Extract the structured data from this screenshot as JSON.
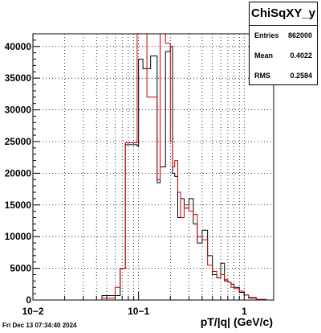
{
  "stats": {
    "title": "ChiSqXY_y",
    "rows": [
      {
        "label": "Entries",
        "value": "862000"
      },
      {
        "label": "Mean",
        "value": "0.4022"
      },
      {
        "label": "RMS",
        "value": "0.2584"
      }
    ]
  },
  "timestamp": "Fri Dec 13 07:34:40 2024",
  "chart_data": {
    "type": "line",
    "xlabel": "pT/|q| (GeV/c)",
    "ylabel": "",
    "x_scale": "log",
    "xlim": [
      0.01,
      1.9
    ],
    "ylim": [
      0,
      42000
    ],
    "grid": true,
    "x_ticks": [
      {
        "value": 0.01,
        "label": "10−2"
      },
      {
        "value": 0.1,
        "label": "10−1"
      },
      {
        "value": 1,
        "label": "1"
      }
    ],
    "y_ticks": [
      0,
      5000,
      10000,
      15000,
      20000,
      25000,
      30000,
      35000,
      40000
    ],
    "series": [
      {
        "color": "#000000",
        "x": [
          0.01,
          0.045,
          0.06,
          0.067,
          0.075,
          0.09,
          0.097,
          0.1,
          0.105,
          0.11,
          0.12,
          0.13,
          0.15,
          0.16,
          0.18,
          0.2,
          0.21,
          0.22,
          0.235,
          0.25,
          0.27,
          0.3,
          0.33,
          0.36,
          0.4,
          0.45,
          0.5,
          0.55,
          0.6,
          0.65,
          0.7,
          0.75,
          0.8,
          0.9,
          1.0,
          1.1,
          1.3,
          1.6
        ],
        "y": [
          0,
          700,
          700,
          5000,
          24500,
          24500,
          24300,
          38000,
          38000,
          36500,
          36500,
          38500,
          18500,
          21000,
          39200,
          40000,
          20000,
          19500,
          13000,
          16000,
          14500,
          16000,
          12000,
          9000,
          11000,
          7000,
          4000,
          3500,
          5800,
          3000,
          2800,
          2500,
          2000,
          1200,
          800,
          400,
          100,
          0
        ]
      },
      {
        "color": "#cc0000",
        "x": [
          0.01,
          0.045,
          0.06,
          0.067,
          0.075,
          0.09,
          0.097,
          0.1,
          0.105,
          0.11,
          0.12,
          0.13,
          0.15,
          0.16,
          0.18,
          0.2,
          0.21,
          0.22,
          0.235,
          0.25,
          0.27,
          0.3,
          0.33,
          0.36,
          0.4,
          0.45,
          0.5,
          0.55,
          0.6,
          0.65,
          0.7,
          0.75,
          0.8,
          0.9,
          1.0,
          1.1,
          1.3,
          1.6
        ],
        "y": [
          0,
          300,
          2000,
          5000,
          24800,
          24800,
          42000,
          42000,
          42000,
          42000,
          32000,
          32000,
          19000,
          42000,
          40500,
          25000,
          21000,
          22000,
          17000,
          13000,
          15000,
          14000,
          13500,
          10000,
          9500,
          5500,
          4500,
          3500,
          4000,
          3200,
          2800,
          2000,
          1800,
          1400,
          800,
          300,
          80,
          0
        ]
      }
    ]
  }
}
